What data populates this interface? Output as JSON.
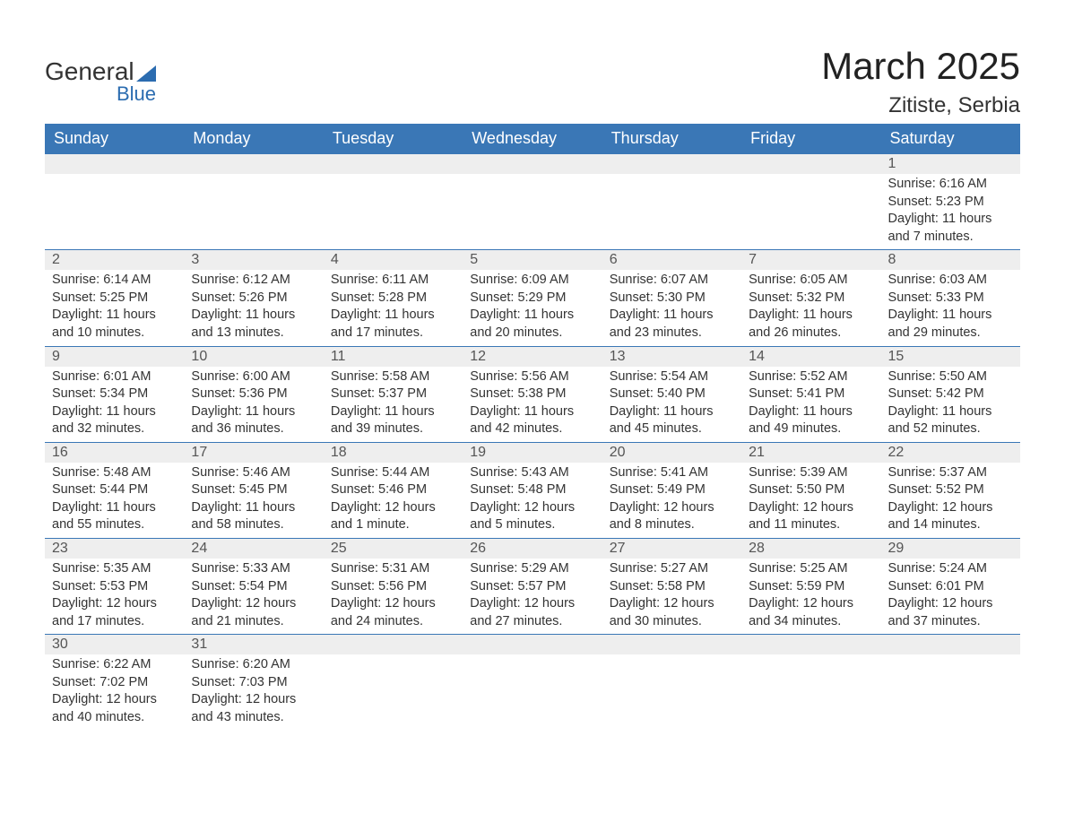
{
  "brand": {
    "line1": "General",
    "line2": "Blue"
  },
  "title": "March 2025",
  "location": "Zitiste, Serbia",
  "colors": {
    "header_bg": "#3a77b6",
    "header_text": "#ffffff",
    "daynum_bg": "#eeeeee",
    "row_divider": "#3a77b6",
    "body_text": "#333333",
    "brand_blue": "#2b6cb0",
    "background": "#ffffff"
  },
  "typography": {
    "title_fontsize": 42,
    "location_fontsize": 24,
    "header_fontsize": 18,
    "daynum_fontsize": 16,
    "body_fontsize": 14.5
  },
  "weekdays": [
    "Sunday",
    "Monday",
    "Tuesday",
    "Wednesday",
    "Thursday",
    "Friday",
    "Saturday"
  ],
  "weeks": [
    [
      null,
      null,
      null,
      null,
      null,
      null,
      {
        "n": "1",
        "sunrise": "6:16 AM",
        "sunset": "5:23 PM",
        "daylight": "11 hours and 7 minutes."
      }
    ],
    [
      {
        "n": "2",
        "sunrise": "6:14 AM",
        "sunset": "5:25 PM",
        "daylight": "11 hours and 10 minutes."
      },
      {
        "n": "3",
        "sunrise": "6:12 AM",
        "sunset": "5:26 PM",
        "daylight": "11 hours and 13 minutes."
      },
      {
        "n": "4",
        "sunrise": "6:11 AM",
        "sunset": "5:28 PM",
        "daylight": "11 hours and 17 minutes."
      },
      {
        "n": "5",
        "sunrise": "6:09 AM",
        "sunset": "5:29 PM",
        "daylight": "11 hours and 20 minutes."
      },
      {
        "n": "6",
        "sunrise": "6:07 AM",
        "sunset": "5:30 PM",
        "daylight": "11 hours and 23 minutes."
      },
      {
        "n": "7",
        "sunrise": "6:05 AM",
        "sunset": "5:32 PM",
        "daylight": "11 hours and 26 minutes."
      },
      {
        "n": "8",
        "sunrise": "6:03 AM",
        "sunset": "5:33 PM",
        "daylight": "11 hours and 29 minutes."
      }
    ],
    [
      {
        "n": "9",
        "sunrise": "6:01 AM",
        "sunset": "5:34 PM",
        "daylight": "11 hours and 32 minutes."
      },
      {
        "n": "10",
        "sunrise": "6:00 AM",
        "sunset": "5:36 PM",
        "daylight": "11 hours and 36 minutes."
      },
      {
        "n": "11",
        "sunrise": "5:58 AM",
        "sunset": "5:37 PM",
        "daylight": "11 hours and 39 minutes."
      },
      {
        "n": "12",
        "sunrise": "5:56 AM",
        "sunset": "5:38 PM",
        "daylight": "11 hours and 42 minutes."
      },
      {
        "n": "13",
        "sunrise": "5:54 AM",
        "sunset": "5:40 PM",
        "daylight": "11 hours and 45 minutes."
      },
      {
        "n": "14",
        "sunrise": "5:52 AM",
        "sunset": "5:41 PM",
        "daylight": "11 hours and 49 minutes."
      },
      {
        "n": "15",
        "sunrise": "5:50 AM",
        "sunset": "5:42 PM",
        "daylight": "11 hours and 52 minutes."
      }
    ],
    [
      {
        "n": "16",
        "sunrise": "5:48 AM",
        "sunset": "5:44 PM",
        "daylight": "11 hours and 55 minutes."
      },
      {
        "n": "17",
        "sunrise": "5:46 AM",
        "sunset": "5:45 PM",
        "daylight": "11 hours and 58 minutes."
      },
      {
        "n": "18",
        "sunrise": "5:44 AM",
        "sunset": "5:46 PM",
        "daylight": "12 hours and 1 minute."
      },
      {
        "n": "19",
        "sunrise": "5:43 AM",
        "sunset": "5:48 PM",
        "daylight": "12 hours and 5 minutes."
      },
      {
        "n": "20",
        "sunrise": "5:41 AM",
        "sunset": "5:49 PM",
        "daylight": "12 hours and 8 minutes."
      },
      {
        "n": "21",
        "sunrise": "5:39 AM",
        "sunset": "5:50 PM",
        "daylight": "12 hours and 11 minutes."
      },
      {
        "n": "22",
        "sunrise": "5:37 AM",
        "sunset": "5:52 PM",
        "daylight": "12 hours and 14 minutes."
      }
    ],
    [
      {
        "n": "23",
        "sunrise": "5:35 AM",
        "sunset": "5:53 PM",
        "daylight": "12 hours and 17 minutes."
      },
      {
        "n": "24",
        "sunrise": "5:33 AM",
        "sunset": "5:54 PM",
        "daylight": "12 hours and 21 minutes."
      },
      {
        "n": "25",
        "sunrise": "5:31 AM",
        "sunset": "5:56 PM",
        "daylight": "12 hours and 24 minutes."
      },
      {
        "n": "26",
        "sunrise": "5:29 AM",
        "sunset": "5:57 PM",
        "daylight": "12 hours and 27 minutes."
      },
      {
        "n": "27",
        "sunrise": "5:27 AM",
        "sunset": "5:58 PM",
        "daylight": "12 hours and 30 minutes."
      },
      {
        "n": "28",
        "sunrise": "5:25 AM",
        "sunset": "5:59 PM",
        "daylight": "12 hours and 34 minutes."
      },
      {
        "n": "29",
        "sunrise": "5:24 AM",
        "sunset": "6:01 PM",
        "daylight": "12 hours and 37 minutes."
      }
    ],
    [
      {
        "n": "30",
        "sunrise": "6:22 AM",
        "sunset": "7:02 PM",
        "daylight": "12 hours and 40 minutes."
      },
      {
        "n": "31",
        "sunrise": "6:20 AM",
        "sunset": "7:03 PM",
        "daylight": "12 hours and 43 minutes."
      },
      null,
      null,
      null,
      null,
      null
    ]
  ],
  "labels": {
    "sunrise": "Sunrise: ",
    "sunset": "Sunset: ",
    "daylight": "Daylight: "
  }
}
